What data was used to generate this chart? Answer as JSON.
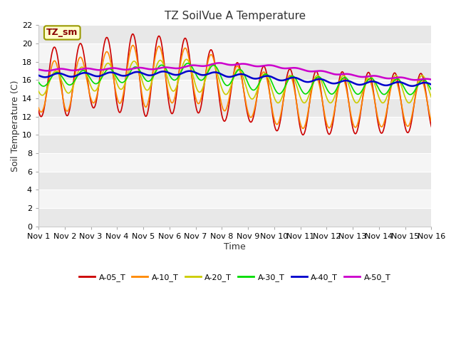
{
  "title": "TZ SoilVue A Temperature",
  "xlabel": "Time",
  "ylabel": "Soil Temperature (C)",
  "xlim": [
    0,
    15
  ],
  "ylim": [
    0,
    22
  ],
  "yticks": [
    0,
    2,
    4,
    6,
    8,
    10,
    12,
    14,
    16,
    18,
    20,
    22
  ],
  "xtick_labels": [
    "Nov 1",
    "Nov 2",
    "Nov 3",
    "Nov 4",
    "Nov 5",
    "Nov 6",
    "Nov 7",
    "Nov 8",
    "Nov 9",
    "Nov 10",
    "Nov 11",
    "Nov 12",
    "Nov 13",
    "Nov 14",
    "Nov 15",
    "Nov 16"
  ],
  "background_color": "#ffffff",
  "plot_background": "#ffffff",
  "grid_color": "#dddddd",
  "annotation_text": "TZ_sm",
  "annotation_bg": "#ffffcc",
  "annotation_border": "#999900",
  "annotation_text_color": "#880000",
  "series": {
    "A-05_T": {
      "color": "#cc0000",
      "linewidth": 1.2
    },
    "A-10_T": {
      "color": "#ff8800",
      "linewidth": 1.2
    },
    "A-20_T": {
      "color": "#cccc00",
      "linewidth": 1.2
    },
    "A-30_T": {
      "color": "#00dd00",
      "linewidth": 1.2
    },
    "A-40_T": {
      "color": "#0000cc",
      "linewidth": 1.8
    },
    "A-50_T": {
      "color": "#cc00cc",
      "linewidth": 1.8
    }
  }
}
